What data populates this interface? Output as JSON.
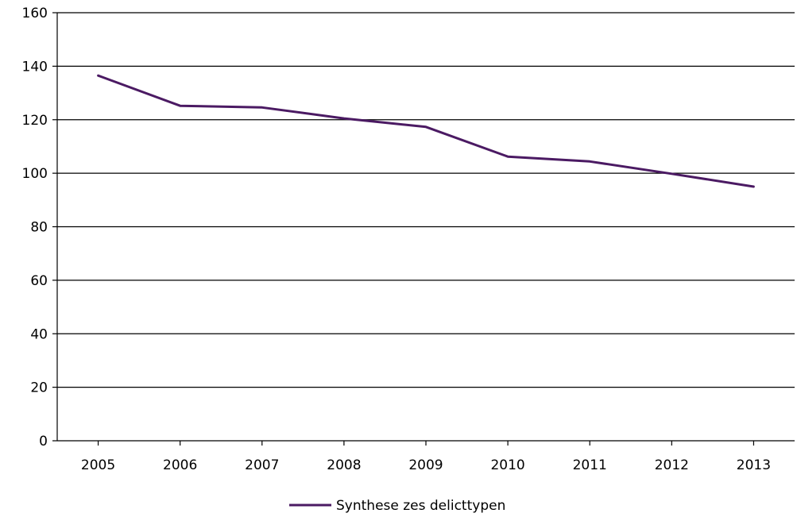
{
  "chart_data": {
    "type": "line",
    "title": "",
    "xlabel": "",
    "ylabel": "",
    "categories": [
      "2005",
      "2006",
      "2007",
      "2008",
      "2009",
      "2010",
      "2011",
      "2012",
      "2013"
    ],
    "ylim": [
      0,
      160
    ],
    "yticks": [
      0,
      20,
      40,
      60,
      80,
      100,
      120,
      140,
      160
    ],
    "grid": true,
    "legend_position": "bottom",
    "series": [
      {
        "name": "Synthese zes delicttypen",
        "color": "#4b1a63",
        "values": [
          136.5,
          125.2,
          124.6,
          120.5,
          117.3,
          106.2,
          104.4,
          99.8,
          95.0
        ]
      }
    ]
  }
}
